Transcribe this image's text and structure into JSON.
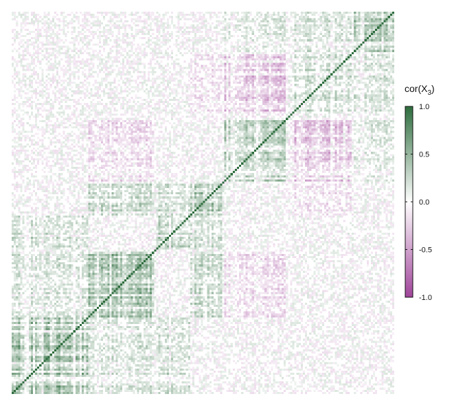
{
  "chart_data": {
    "type": "heatmap",
    "title": "",
    "xlabel": "",
    "ylabel": "",
    "n_variables": 180,
    "value_range": [
      -1.0,
      1.0
    ],
    "diagonal_value": 1.0,
    "color_scale": {
      "low": "#a0459a",
      "mid": "#ffffff",
      "high": "#2e6d3e"
    },
    "legend": {
      "title_main": "cor(X",
      "title_sub": "3",
      "title_close": ")",
      "position": "right",
      "ticks": [
        1.0,
        0.5,
        0.0,
        -0.5,
        -1.0
      ],
      "tick_labels": [
        "1.0",
        "0.5",
        "0.0",
        "-0.5",
        "-1.0"
      ]
    },
    "blocks": [
      {
        "start": 0,
        "end": 36,
        "within": 0.55
      },
      {
        "start": 36,
        "end": 68,
        "within": 0.5
      },
      {
        "start": 68,
        "end": 84,
        "within": 0.35
      },
      {
        "start": 84,
        "end": 100,
        "within": 0.45
      },
      {
        "start": 100,
        "end": 130,
        "within": 0.35
      },
      {
        "start": 130,
        "end": 160,
        "within": 0.25
      },
      {
        "start": 160,
        "end": 180,
        "within": 0.4
      }
    ],
    "cross_block": [
      {
        "a": 0,
        "b": 2,
        "value": 0.25
      },
      {
        "a": 0,
        "b": 1,
        "value": 0.2
      },
      {
        "a": 1,
        "b": 3,
        "value": 0.3
      },
      {
        "a": 1,
        "b": 4,
        "value": -0.2
      },
      {
        "a": 4,
        "b": 5,
        "value": -0.35
      },
      {
        "a": 3,
        "b": 5,
        "value": -0.15
      },
      {
        "a": 4,
        "b": 6,
        "value": 0.15
      },
      {
        "a": 5,
        "b": 6,
        "value": 0.2
      },
      {
        "a": 2,
        "b": 3,
        "value": 0.25
      }
    ]
  }
}
